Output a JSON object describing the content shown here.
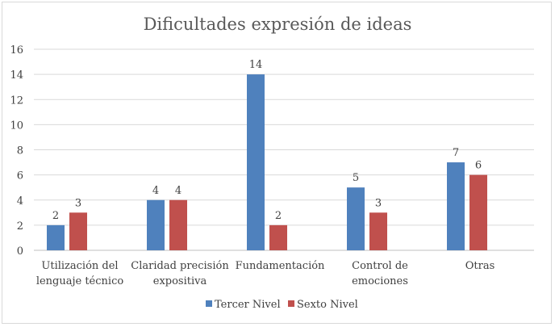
{
  "chart_data": {
    "type": "bar",
    "title": "Dificultades expresión de ideas",
    "categories": [
      [
        "Utilización del",
        "lenguaje técnico"
      ],
      [
        "Claridad precisión",
        "expositiva"
      ],
      [
        "Fundamentación"
      ],
      [
        "Control de",
        "emociones"
      ],
      [
        "Otras"
      ]
    ],
    "series": [
      {
        "name": "Tercer Nivel",
        "color": "#4f81bd",
        "values": [
          2,
          4,
          14,
          5,
          7
        ]
      },
      {
        "name": "Sexto Nivel",
        "color": "#c0504d",
        "values": [
          3,
          4,
          2,
          3,
          6
        ]
      }
    ],
    "ylim": [
      0,
      16
    ],
    "yticks": [
      0,
      2,
      4,
      6,
      8,
      10,
      12,
      14,
      16
    ],
    "grid": true,
    "legend_position": "bottom"
  }
}
